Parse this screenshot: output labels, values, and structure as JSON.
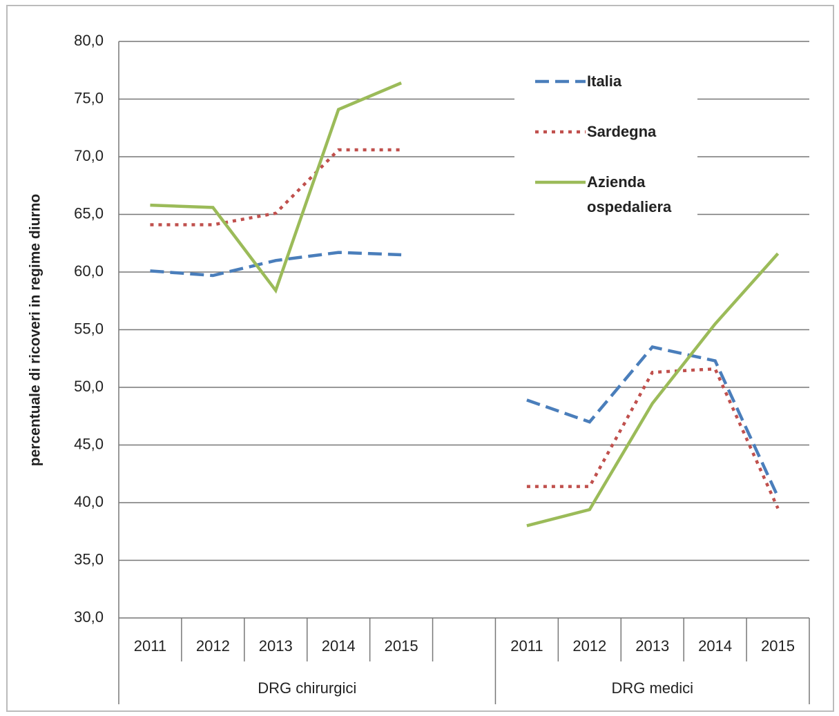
{
  "chart_data": {
    "type": "line",
    "y_label": "percentuale di ricoveri in regime diurno",
    "categories": [
      "2011",
      "2012",
      "2013",
      "2014",
      "2015",
      null,
      "2011",
      "2012",
      "2013",
      "2014",
      "2015"
    ],
    "groups": [
      "DRG chirurgici",
      "DRG medici"
    ],
    "series": [
      {
        "name": "Italia",
        "color": "#4a7ebb",
        "style": "dashed",
        "values": [
          60.1,
          59.7,
          61.0,
          61.7,
          61.5,
          null,
          48.9,
          47.0,
          53.5,
          52.3,
          40.5
        ]
      },
      {
        "name": "Sardegna",
        "color": "#c0504d",
        "style": "dotted",
        "values": [
          64.1,
          64.1,
          65.1,
          70.6,
          70.6,
          null,
          41.4,
          41.4,
          51.3,
          51.6,
          39.5
        ]
      },
      {
        "name": "Azienda ospedaliera",
        "color": "#9bbb59",
        "style": "solid",
        "values": [
          65.8,
          65.6,
          58.4,
          74.1,
          76.4,
          null,
          38.0,
          39.4,
          48.6,
          55.5,
          61.6
        ]
      }
    ],
    "ylim": [
      30,
      80
    ],
    "yticks": [
      {
        "value": 30,
        "label": "30,0"
      },
      {
        "value": 35,
        "label": "35,0"
      },
      {
        "value": 40,
        "label": "40,0"
      },
      {
        "value": 45,
        "label": "45,0"
      },
      {
        "value": 50,
        "label": "50,0"
      },
      {
        "value": 55,
        "label": "55,0"
      },
      {
        "value": 60,
        "label": "60,0"
      },
      {
        "value": 65,
        "label": "65,0"
      },
      {
        "value": 70,
        "label": "70,0"
      },
      {
        "value": 75,
        "label": "75,0"
      },
      {
        "value": 80,
        "label": "80,0"
      }
    ],
    "grid": true,
    "legend": "top-right"
  }
}
